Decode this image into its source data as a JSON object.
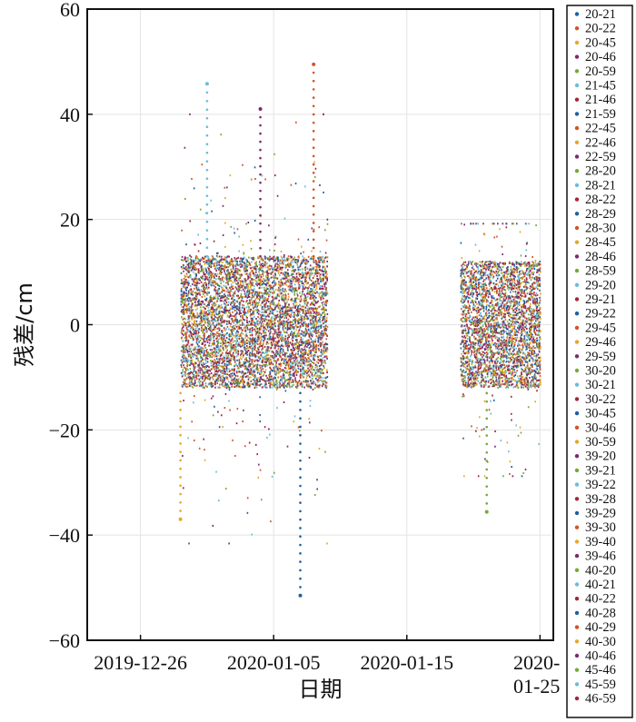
{
  "chart_data": {
    "type": "scatter",
    "title": "",
    "xlabel": "日期",
    "ylabel": "残差/cm",
    "xlim": [
      "2019-12-22",
      "2020-01-26"
    ],
    "ylim": [
      -60,
      60
    ],
    "yticks": [
      60,
      40,
      20,
      0,
      -20,
      -40,
      -60
    ],
    "yticklabels": [
      "60",
      "40",
      "20",
      "0",
      "−20",
      "−40",
      "−60"
    ],
    "xticks": [
      {
        "date": "2019-12-26",
        "label": "2019-12-26"
      },
      {
        "date": "2020-01-05",
        "label": "2020-01-05"
      },
      {
        "date": "2020-01-15",
        "label": "2020-01-15"
      },
      {
        "date": "2020-01-25",
        "label": "2020-\n01-25"
      }
    ],
    "grid": true,
    "legend_position": "right-outside",
    "observation_periods": [
      {
        "start": "2019-12-29",
        "end": "2020-01-09",
        "typical_range": [
          -12,
          13
        ],
        "extreme_range": [
          -52,
          50
        ]
      },
      {
        "start": "2020-01-19",
        "end": "2020-01-25",
        "typical_range": [
          -12,
          12
        ],
        "extreme_range": [
          -36,
          24
        ]
      }
    ],
    "notable_points": [
      {
        "x": "2020-01-08",
        "y": 49.5
      },
      {
        "x": "2020-01-04",
        "y": 41
      },
      {
        "x": "2019-12-31",
        "y": 45.8
      },
      {
        "x": "2020-01-07",
        "y": -51.5
      },
      {
        "x": "2019-12-29",
        "y": -37
      },
      {
        "x": "2020-01-21",
        "y": -35.6
      }
    ],
    "series_colors": [
      "#1f5f9e",
      "#d1542a",
      "#e4a82c",
      "#7a2a6f",
      "#77a83a",
      "#6cbcdc",
      "#a3253a"
    ],
    "series": [
      {
        "name": "20-21"
      },
      {
        "name": "20-22"
      },
      {
        "name": "20-45"
      },
      {
        "name": "20-46"
      },
      {
        "name": "20-59"
      },
      {
        "name": "21-45"
      },
      {
        "name": "21-46"
      },
      {
        "name": "21-59"
      },
      {
        "name": "22-45"
      },
      {
        "name": "22-46"
      },
      {
        "name": "22-59"
      },
      {
        "name": "28-20"
      },
      {
        "name": "28-21"
      },
      {
        "name": "28-22"
      },
      {
        "name": "28-29"
      },
      {
        "name": "28-30"
      },
      {
        "name": "28-45"
      },
      {
        "name": "28-46"
      },
      {
        "name": "28-59"
      },
      {
        "name": "29-20"
      },
      {
        "name": "29-21"
      },
      {
        "name": "29-22"
      },
      {
        "name": "29-45"
      },
      {
        "name": "29-46"
      },
      {
        "name": "29-59"
      },
      {
        "name": "30-20"
      },
      {
        "name": "30-21"
      },
      {
        "name": "30-22"
      },
      {
        "name": "30-45"
      },
      {
        "name": "30-46"
      },
      {
        "name": "30-59"
      },
      {
        "name": "39-20"
      },
      {
        "name": "39-21"
      },
      {
        "name": "39-22"
      },
      {
        "name": "39-28"
      },
      {
        "name": "39-29"
      },
      {
        "name": "39-30"
      },
      {
        "name": "39-40"
      },
      {
        "name": "39-46"
      },
      {
        "name": "40-20"
      },
      {
        "name": "40-21"
      },
      {
        "name": "40-22"
      },
      {
        "name": "40-28"
      },
      {
        "name": "40-29"
      },
      {
        "name": "40-30"
      },
      {
        "name": "40-46"
      },
      {
        "name": "45-46"
      },
      {
        "name": "45-59"
      },
      {
        "name": "46-59"
      }
    ]
  }
}
